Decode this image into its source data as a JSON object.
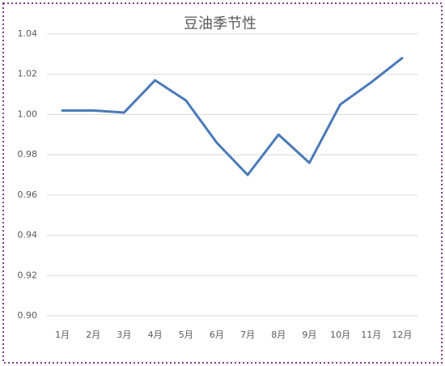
{
  "chart_data": {
    "type": "line",
    "title": "豆油季节性",
    "categories": [
      "1月",
      "2月",
      "3月",
      "4月",
      "5月",
      "6月",
      "7月",
      "8月",
      "9月",
      "10月",
      "11月",
      "12月"
    ],
    "series": [
      {
        "name": "豆油",
        "color": "#4a7ab8",
        "values": [
          1.002,
          1.002,
          1.001,
          1.017,
          1.007,
          0.986,
          0.97,
          0.99,
          0.976,
          1.005,
          1.016,
          1.028
        ]
      }
    ],
    "ylim": [
      0.9,
      1.04
    ],
    "yticks": [
      {
        "value": 0.9,
        "label": "0.90"
      },
      0.92,
      0.94,
      0.96,
      0.98,
      {
        "value": 1,
        "label": "1.00"
      },
      1.02,
      1.04
    ],
    "grid": true
  }
}
